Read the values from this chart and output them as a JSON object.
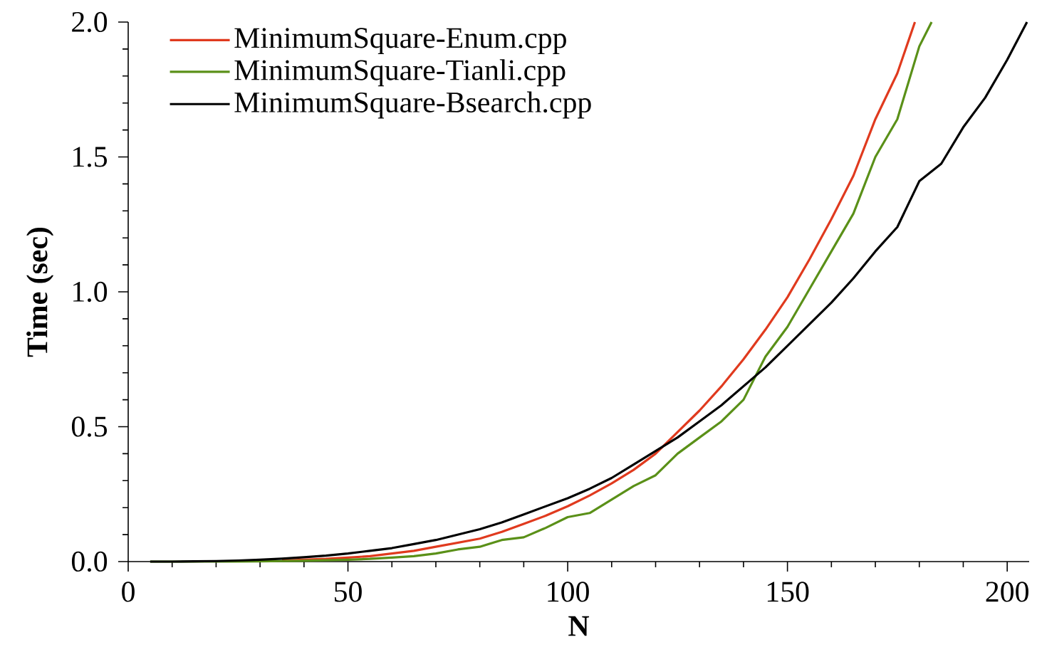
{
  "chart_data": {
    "type": "line",
    "xlabel": "N",
    "ylabel": "Time (sec)",
    "xlim": [
      0,
      205
    ],
    "ylim": [
      0,
      2.0
    ],
    "xticks": [
      0,
      50,
      100,
      150,
      200
    ],
    "yticks": [
      {
        "value": 0,
        "label": "0.0"
      },
      {
        "value": 0.5,
        "label": "0.5"
      },
      {
        "value": 1.0,
        "label": "1.0"
      },
      {
        "value": 1.5,
        "label": "1.5"
      },
      {
        "value": 2.0,
        "label": "2.0"
      }
    ],
    "legend": "top left",
    "marker": "none",
    "line_style": "solid",
    "grid": false,
    "series": [
      {
        "name": "MinimumSquare-Enum.cpp",
        "color": "#e03a1e",
        "x": [
          35,
          40,
          45,
          50,
          55,
          60,
          65,
          70,
          75,
          80,
          85,
          90,
          95,
          100,
          105,
          110,
          115,
          120,
          125,
          130,
          135,
          140,
          145,
          150,
          155,
          160,
          165,
          170,
          175,
          179
        ],
        "values": [
          0.004,
          0.007,
          0.01,
          0.015,
          0.02,
          0.03,
          0.04,
          0.055,
          0.07,
          0.085,
          0.11,
          0.14,
          0.17,
          0.205,
          0.245,
          0.29,
          0.34,
          0.4,
          0.48,
          0.56,
          0.65,
          0.75,
          0.86,
          0.98,
          1.12,
          1.27,
          1.43,
          1.64,
          1.81,
          2.0
        ]
      },
      {
        "name": "MinimumSquare-Tianli.cpp",
        "color": "#5a9018",
        "x": [
          5,
          10,
          15,
          20,
          25,
          30,
          35,
          40,
          45,
          50,
          55,
          60,
          65,
          70,
          75,
          80,
          85,
          90,
          95,
          100,
          105,
          110,
          115,
          120,
          125,
          130,
          135,
          140,
          145,
          150,
          155,
          160,
          165,
          170,
          175,
          180,
          182.8
        ],
        "values": [
          0,
          0,
          0,
          0,
          0,
          0.001,
          0.002,
          0.003,
          0.005,
          0.007,
          0.01,
          0.015,
          0.02,
          0.03,
          0.045,
          0.055,
          0.08,
          0.09,
          0.125,
          0.165,
          0.18,
          0.23,
          0.28,
          0.32,
          0.4,
          0.46,
          0.52,
          0.6,
          0.76,
          0.87,
          1.01,
          1.15,
          1.29,
          1.5,
          1.64,
          1.91,
          2.0
        ]
      },
      {
        "name": "MinimumSquare-Bsearch.cpp",
        "color": "#000000",
        "x": [
          5,
          10,
          15,
          20,
          25,
          30,
          35,
          40,
          45,
          50,
          55,
          60,
          65,
          70,
          75,
          80,
          85,
          90,
          95,
          100,
          105,
          110,
          115,
          120,
          125,
          130,
          135,
          140,
          145,
          150,
          155,
          160,
          165,
          170,
          175,
          180,
          185,
          190,
          195,
          200,
          204.5
        ],
        "values": [
          0,
          0,
          0.001,
          0.002,
          0.004,
          0.007,
          0.011,
          0.016,
          0.022,
          0.03,
          0.04,
          0.05,
          0.065,
          0.08,
          0.1,
          0.12,
          0.145,
          0.175,
          0.205,
          0.235,
          0.27,
          0.31,
          0.36,
          0.41,
          0.46,
          0.52,
          0.58,
          0.65,
          0.72,
          0.8,
          0.88,
          0.96,
          1.05,
          1.15,
          1.24,
          1.41,
          1.475,
          1.61,
          1.72,
          1.86,
          2.0
        ]
      }
    ]
  }
}
